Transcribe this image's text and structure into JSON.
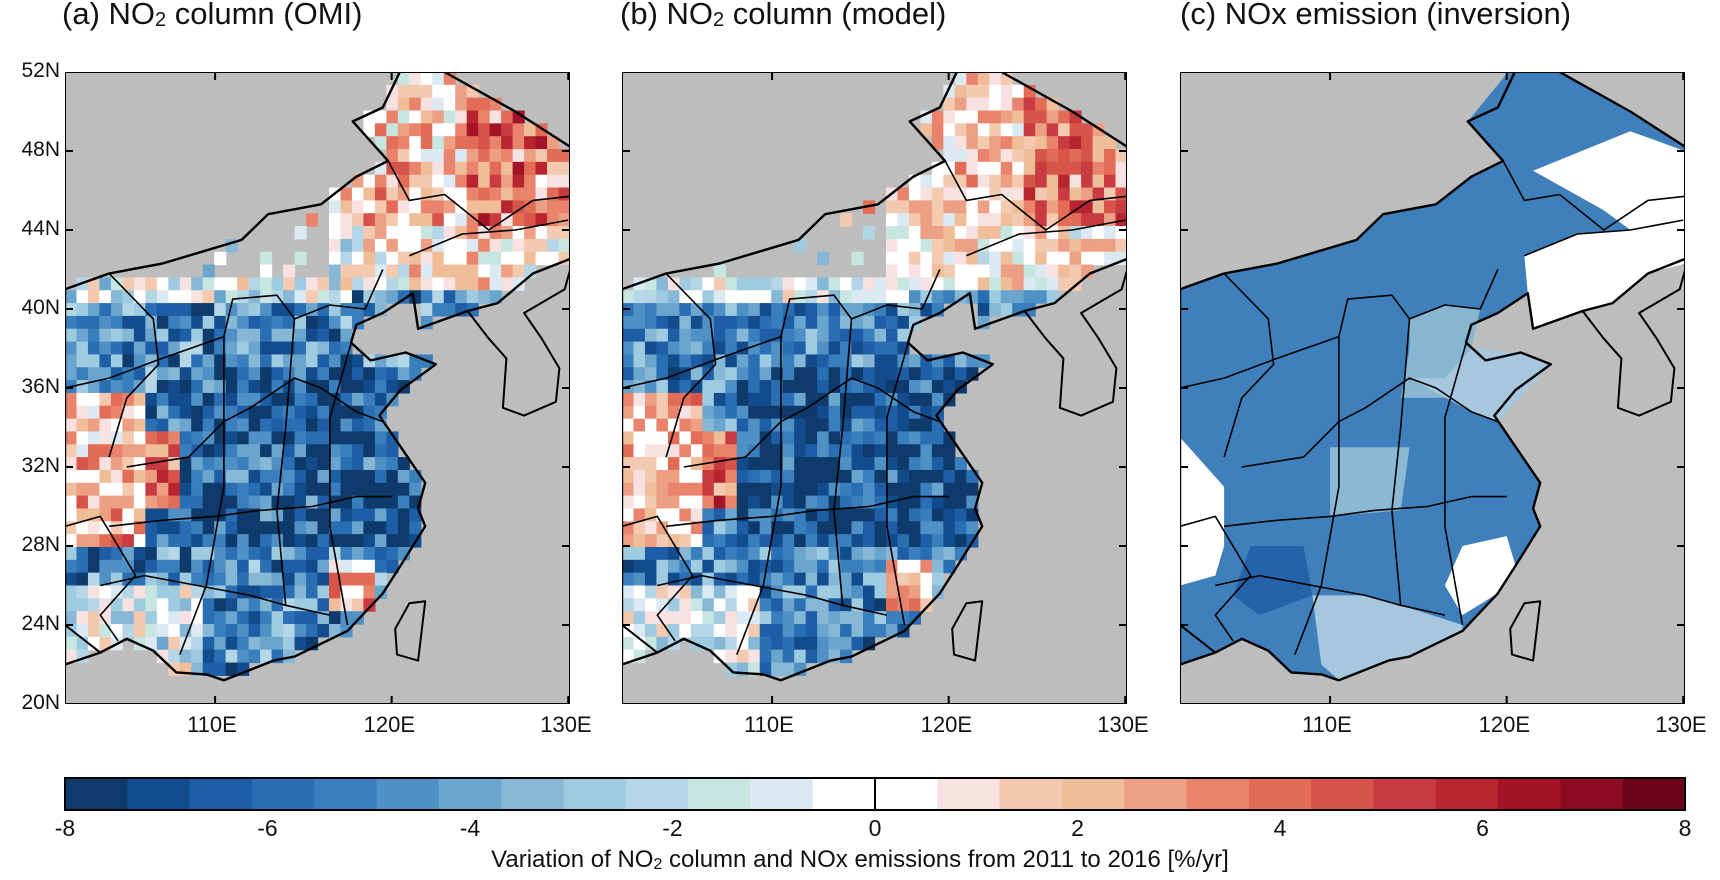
{
  "panels": [
    {
      "id": "a",
      "title_prefix": "(a) NO",
      "title_sub": "2",
      "title_suffix": " column (OMI)"
    },
    {
      "id": "b",
      "title_prefix": "(b) NO",
      "title_sub": "2",
      "title_suffix": " column (model)"
    },
    {
      "id": "c",
      "title_prefix": "(c) NOx emission (inversion)",
      "title_sub": "",
      "title_suffix": ""
    }
  ],
  "lat_labels": [
    "52N",
    "48N",
    "44N",
    "40N",
    "36N",
    "32N",
    "28N",
    "24N",
    "20N"
  ],
  "lon_labels": [
    "110E",
    "120E",
    "130E"
  ],
  "colorbar": {
    "ticks": [
      "-8",
      "-6",
      "-4",
      "-2",
      "0",
      "2",
      "4",
      "6",
      "8"
    ],
    "min": -8,
    "max": 8,
    "colors": [
      "#0e3a6c",
      "#134c8c",
      "#1e5ea6",
      "#2a6fb3",
      "#3a7fbd",
      "#4f91c5",
      "#6aa5ce",
      "#86b8d6",
      "#9fcbe0",
      "#b4d6e6",
      "#c8e6e0",
      "#dbe9f2",
      "#ffffff",
      "#ffffff",
      "#f7e1e1",
      "#f3c9b0",
      "#efbd98",
      "#ec9f82",
      "#e9836c",
      "#e36c57",
      "#d65548",
      "#c83b40",
      "#b82531",
      "#a31426",
      "#8d0b22",
      "#6e041b"
    ],
    "title_prefix": "Variation of NO",
    "title_sub": "2",
    "title_suffix": " column and NOx emissions from 2011 to 2016 [%/yr]"
  },
  "colors": {
    "ocean": "#bdbdbd",
    "border": "#000000",
    "nodata": "#ffffff"
  }
}
